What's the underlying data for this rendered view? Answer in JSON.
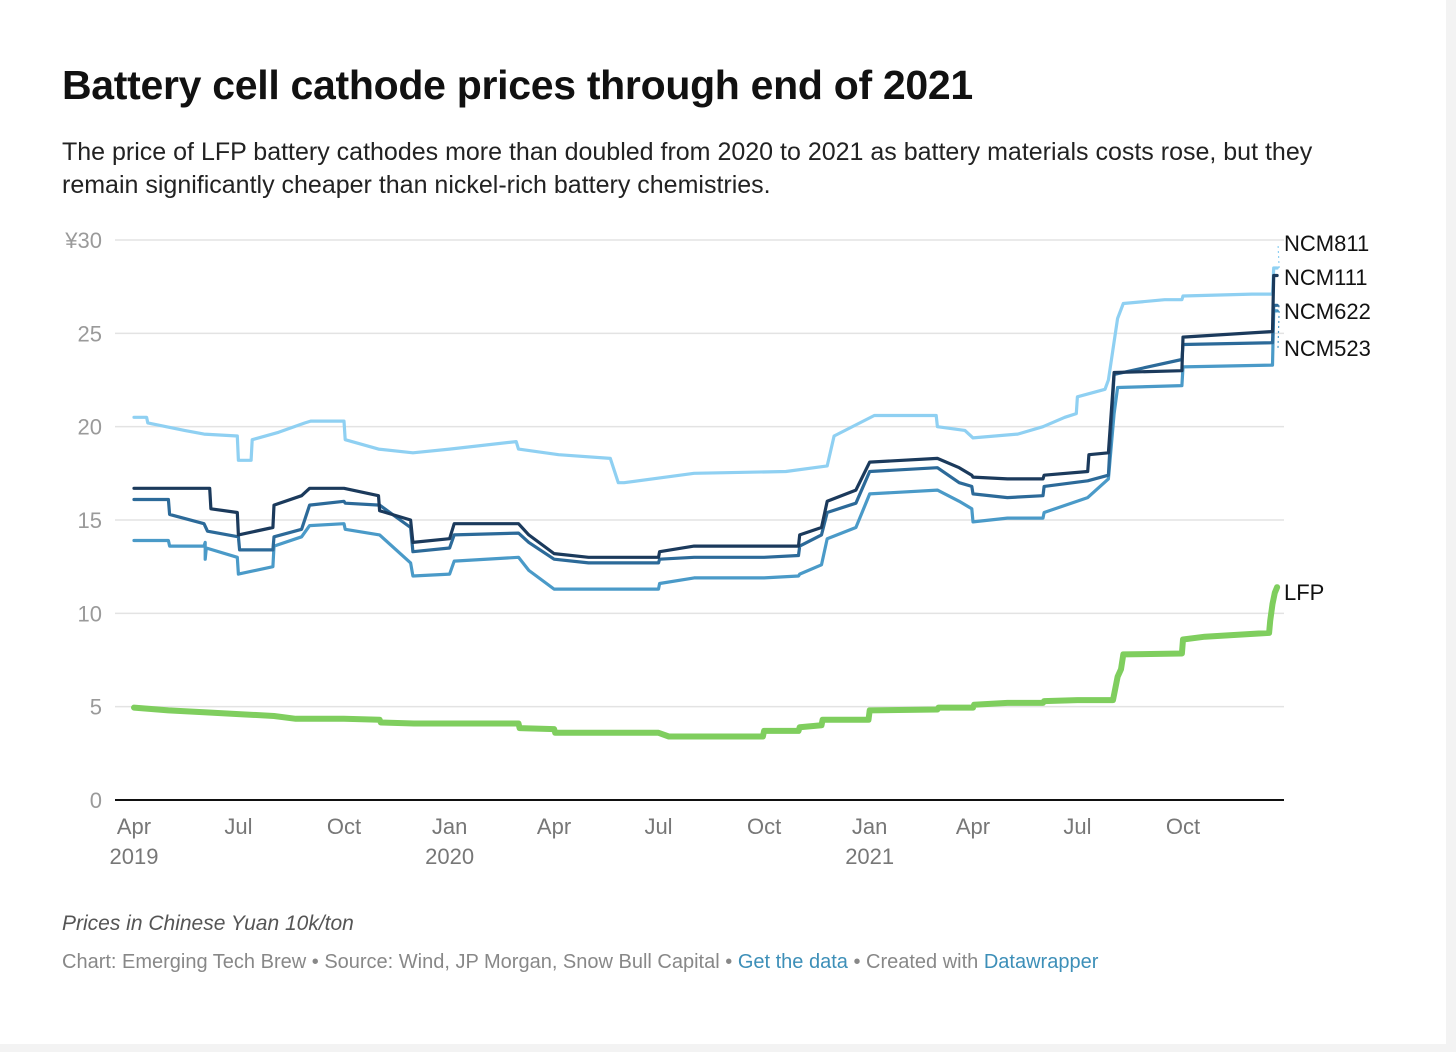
{
  "title": "Battery cell cathode prices through end of 2021",
  "subtitle": "The price of LFP battery cathodes more than doubled from 2020 to 2021 as battery materials costs rose, but they remain significantly cheaper than nickel-rich battery chemistries.",
  "notes": "Prices in Chinese Yuan 10k/ton",
  "footer": {
    "chart_by": "Chart: Emerging Tech Brew",
    "sep1": " • ",
    "source": "Source: Wind, JP Morgan, Snow Bull Capital",
    "sep2": " • ",
    "get_data": "Get the data",
    "sep3": " • ",
    "created_with": "Created with ",
    "tool": "Datawrapper"
  },
  "chart_data": {
    "type": "line",
    "title": "Battery cell cathode prices through end of 2021",
    "ylim": [
      0,
      30
    ],
    "y_ticks": [
      {
        "value": 0,
        "label": "0"
      },
      {
        "value": 5,
        "label": "5"
      },
      {
        "value": 10,
        "label": "10"
      },
      {
        "value": 15,
        "label": "15"
      },
      {
        "value": 20,
        "label": "20"
      },
      {
        "value": 25,
        "label": "25"
      },
      {
        "value": 30,
        "label": "¥30"
      }
    ],
    "x_ticks": [
      {
        "date": "2019-04-01",
        "label": "Apr",
        "year": "2019"
      },
      {
        "date": "2019-07-01",
        "label": "Jul",
        "year": ""
      },
      {
        "date": "2019-10-01",
        "label": "Oct",
        "year": ""
      },
      {
        "date": "2020-01-01",
        "label": "Jan",
        "year": "2020"
      },
      {
        "date": "2020-04-01",
        "label": "Apr",
        "year": ""
      },
      {
        "date": "2020-07-01",
        "label": "Jul",
        "year": ""
      },
      {
        "date": "2020-10-01",
        "label": "Oct",
        "year": ""
      },
      {
        "date": "2021-01-01",
        "label": "Jan",
        "year": "2021"
      },
      {
        "date": "2021-04-01",
        "label": "Apr",
        "year": ""
      },
      {
        "date": "2021-07-01",
        "label": "Jul",
        "year": ""
      },
      {
        "date": "2021-10-01",
        "label": "Oct",
        "year": ""
      }
    ],
    "grid": true,
    "legend": "direct labels at right end of lines",
    "series": [
      {
        "name": "NCM811",
        "color": "#8fd0f2",
        "points": [
          [
            "2019-04-01",
            20.5
          ],
          [
            "2019-04-12",
            20.5
          ],
          [
            "2019-04-13",
            20.2
          ],
          [
            "2019-05-15",
            19.8
          ],
          [
            "2019-06-01",
            19.6
          ],
          [
            "2019-06-30",
            19.5
          ],
          [
            "2019-07-01",
            18.2
          ],
          [
            "2019-07-12",
            18.2
          ],
          [
            "2019-07-13",
            19.3
          ],
          [
            "2019-08-05",
            19.7
          ],
          [
            "2019-08-28",
            20.2
          ],
          [
            "2019-09-02",
            20.3
          ],
          [
            "2019-10-01",
            20.3
          ],
          [
            "2019-10-02",
            19.3
          ],
          [
            "2019-10-31",
            18.8
          ],
          [
            "2019-11-30",
            18.6
          ],
          [
            "2020-01-01",
            18.8
          ],
          [
            "2020-02-28",
            19.2
          ],
          [
            "2020-03-01",
            18.8
          ],
          [
            "2020-04-05",
            18.5
          ],
          [
            "2020-05-20",
            18.3
          ],
          [
            "2020-05-27",
            17.0
          ],
          [
            "2020-06-01",
            17.0
          ],
          [
            "2020-08-01",
            17.5
          ],
          [
            "2020-10-20",
            17.6
          ],
          [
            "2020-11-25",
            17.9
          ],
          [
            "2020-12-01",
            19.5
          ],
          [
            "2021-01-05",
            20.6
          ],
          [
            "2021-02-28",
            20.6
          ],
          [
            "2021-03-01",
            20.0
          ],
          [
            "2021-03-25",
            19.8
          ],
          [
            "2021-04-01",
            19.4
          ],
          [
            "2021-05-10",
            19.6
          ],
          [
            "2021-06-01",
            20.0
          ],
          [
            "2021-06-20",
            20.5
          ],
          [
            "2021-06-30",
            20.7
          ],
          [
            "2021-07-01",
            21.6
          ],
          [
            "2021-07-25",
            22.0
          ],
          [
            "2021-07-28",
            22.5
          ],
          [
            "2021-08-05",
            25.8
          ],
          [
            "2021-08-10",
            26.6
          ],
          [
            "2021-09-15",
            26.8
          ],
          [
            "2021-09-30",
            26.8
          ],
          [
            "2021-10-01",
            27.0
          ],
          [
            "2021-11-30",
            27.1
          ],
          [
            "2021-12-18",
            27.1
          ],
          [
            "2021-12-19",
            28.5
          ],
          [
            "2021-12-22",
            28.5
          ]
        ]
      },
      {
        "name": "NCM111",
        "color": "#1b3a5c",
        "points": [
          [
            "2019-04-01",
            16.7
          ],
          [
            "2019-06-06",
            16.7
          ],
          [
            "2019-06-07",
            15.6
          ],
          [
            "2019-06-30",
            15.4
          ],
          [
            "2019-07-01",
            14.2
          ],
          [
            "2019-07-31",
            14.6
          ],
          [
            "2019-08-01",
            15.8
          ],
          [
            "2019-08-25",
            16.3
          ],
          [
            "2019-09-01",
            16.7
          ],
          [
            "2019-10-01",
            16.7
          ],
          [
            "2019-10-31",
            16.3
          ],
          [
            "2019-11-01",
            15.5
          ],
          [
            "2019-11-28",
            15.0
          ],
          [
            "2019-11-30",
            13.8
          ],
          [
            "2020-01-01",
            14.0
          ],
          [
            "2020-01-05",
            14.8
          ],
          [
            "2020-03-01",
            14.8
          ],
          [
            "2020-03-10",
            14.2
          ],
          [
            "2020-04-01",
            13.2
          ],
          [
            "2020-05-01",
            13.0
          ],
          [
            "2020-07-01",
            13.0
          ],
          [
            "2020-07-02",
            13.3
          ],
          [
            "2020-08-01",
            13.6
          ],
          [
            "2020-10-01",
            13.6
          ],
          [
            "2020-10-31",
            13.6
          ],
          [
            "2020-11-01",
            14.2
          ],
          [
            "2020-11-20",
            14.6
          ],
          [
            "2020-11-25",
            16.0
          ],
          [
            "2020-12-20",
            16.6
          ],
          [
            "2021-01-01",
            18.1
          ],
          [
            "2021-03-01",
            18.3
          ],
          [
            "2021-03-20",
            17.8
          ],
          [
            "2021-03-31",
            17.4
          ],
          [
            "2021-04-01",
            17.3
          ],
          [
            "2021-05-01",
            17.2
          ],
          [
            "2021-06-01",
            17.2
          ],
          [
            "2021-06-02",
            17.4
          ],
          [
            "2021-07-10",
            17.6
          ],
          [
            "2021-07-11",
            18.5
          ],
          [
            "2021-07-28",
            18.6
          ],
          [
            "2021-08-02",
            22.9
          ],
          [
            "2021-09-30",
            23.0
          ],
          [
            "2021-10-01",
            24.8
          ],
          [
            "2021-12-18",
            25.1
          ],
          [
            "2021-12-19",
            28.1
          ],
          [
            "2021-12-22",
            28.1
          ]
        ]
      },
      {
        "name": "NCM622",
        "color": "#2c6a99",
        "points": [
          [
            "2019-04-01",
            16.1
          ],
          [
            "2019-05-01",
            16.1
          ],
          [
            "2019-05-02",
            15.3
          ],
          [
            "2019-06-01",
            14.8
          ],
          [
            "2019-06-04",
            14.4
          ],
          [
            "2019-07-01",
            14.1
          ],
          [
            "2019-07-02",
            13.4
          ],
          [
            "2019-07-31",
            13.4
          ],
          [
            "2019-08-01",
            14.1
          ],
          [
            "2019-08-25",
            14.5
          ],
          [
            "2019-09-01",
            15.8
          ],
          [
            "2019-10-01",
            16.0
          ],
          [
            "2019-10-02",
            15.9
          ],
          [
            "2019-11-01",
            15.8
          ],
          [
            "2019-11-28",
            14.6
          ],
          [
            "2019-11-30",
            13.3
          ],
          [
            "2020-01-01",
            13.5
          ],
          [
            "2020-01-05",
            14.2
          ],
          [
            "2020-03-01",
            14.3
          ],
          [
            "2020-03-10",
            13.8
          ],
          [
            "2020-04-01",
            12.9
          ],
          [
            "2020-05-01",
            12.7
          ],
          [
            "2020-07-01",
            12.7
          ],
          [
            "2020-07-02",
            12.9
          ],
          [
            "2020-08-01",
            13.0
          ],
          [
            "2020-10-01",
            13.0
          ],
          [
            "2020-10-31",
            13.1
          ],
          [
            "2020-11-01",
            13.6
          ],
          [
            "2020-11-20",
            14.2
          ],
          [
            "2020-11-25",
            15.4
          ],
          [
            "2020-12-20",
            15.9
          ],
          [
            "2021-01-01",
            17.6
          ],
          [
            "2021-03-01",
            17.8
          ],
          [
            "2021-03-20",
            17.0
          ],
          [
            "2021-03-31",
            16.8
          ],
          [
            "2021-04-01",
            16.4
          ],
          [
            "2021-05-01",
            16.2
          ],
          [
            "2021-06-01",
            16.3
          ],
          [
            "2021-06-02",
            16.8
          ],
          [
            "2021-07-10",
            17.1
          ],
          [
            "2021-07-28",
            17.4
          ],
          [
            "2021-08-02",
            22.8
          ],
          [
            "2021-09-30",
            23.6
          ],
          [
            "2021-10-01",
            24.4
          ],
          [
            "2021-12-18",
            24.5
          ],
          [
            "2021-12-19",
            26.5
          ],
          [
            "2021-12-22",
            26.5
          ]
        ]
      },
      {
        "name": "NCM523",
        "color": "#4a9ac8",
        "points": [
          [
            "2019-04-01",
            13.9
          ],
          [
            "2019-05-01",
            13.9
          ],
          [
            "2019-05-02",
            13.6
          ],
          [
            "2019-06-01",
            13.6
          ],
          [
            "2019-06-02",
            13.8
          ],
          [
            "2019-06-02",
            12.9
          ],
          [
            "2019-06-03",
            13.5
          ],
          [
            "2019-06-30",
            13.0
          ],
          [
            "2019-07-01",
            12.1
          ],
          [
            "2019-07-31",
            12.5
          ],
          [
            "2019-08-01",
            13.6
          ],
          [
            "2019-08-25",
            14.1
          ],
          [
            "2019-09-01",
            14.7
          ],
          [
            "2019-10-01",
            14.8
          ],
          [
            "2019-10-02",
            14.5
          ],
          [
            "2019-11-01",
            14.2
          ],
          [
            "2019-11-28",
            12.7
          ],
          [
            "2019-11-30",
            12.0
          ],
          [
            "2020-01-01",
            12.1
          ],
          [
            "2020-01-05",
            12.8
          ],
          [
            "2020-03-01",
            13.0
          ],
          [
            "2020-03-10",
            12.3
          ],
          [
            "2020-04-01",
            11.3
          ],
          [
            "2020-05-01",
            11.3
          ],
          [
            "2020-07-01",
            11.3
          ],
          [
            "2020-07-02",
            11.6
          ],
          [
            "2020-08-01",
            11.9
          ],
          [
            "2020-10-01",
            11.9
          ],
          [
            "2020-10-31",
            12.0
          ],
          [
            "2020-11-01",
            12.1
          ],
          [
            "2020-11-20",
            12.6
          ],
          [
            "2020-11-25",
            14.0
          ],
          [
            "2020-12-20",
            14.6
          ],
          [
            "2021-01-01",
            16.4
          ],
          [
            "2021-03-01",
            16.6
          ],
          [
            "2021-03-20",
            16.0
          ],
          [
            "2021-03-31",
            15.6
          ],
          [
            "2021-04-01",
            14.9
          ],
          [
            "2021-05-01",
            15.1
          ],
          [
            "2021-06-01",
            15.1
          ],
          [
            "2021-06-02",
            15.4
          ],
          [
            "2021-07-10",
            16.2
          ],
          [
            "2021-07-28",
            17.2
          ],
          [
            "2021-08-02",
            20.7
          ],
          [
            "2021-08-05",
            22.1
          ],
          [
            "2021-09-30",
            22.2
          ],
          [
            "2021-10-01",
            23.2
          ],
          [
            "2021-12-18",
            23.3
          ],
          [
            "2021-12-19",
            26.2
          ],
          [
            "2021-12-22",
            26.2
          ]
        ]
      },
      {
        "name": "LFP",
        "color": "#7fce5e",
        "points": [
          [
            "2019-04-01",
            4.95
          ],
          [
            "2019-05-01",
            4.8
          ],
          [
            "2019-06-01",
            4.7
          ],
          [
            "2019-07-01",
            4.6
          ],
          [
            "2019-08-01",
            4.5
          ],
          [
            "2019-08-20",
            4.35
          ],
          [
            "2019-10-01",
            4.35
          ],
          [
            "2019-11-01",
            4.3
          ],
          [
            "2019-11-02",
            4.15
          ],
          [
            "2019-12-01",
            4.1
          ],
          [
            "2020-01-01",
            4.1
          ],
          [
            "2020-03-01",
            4.1
          ],
          [
            "2020-03-02",
            3.85
          ],
          [
            "2020-04-01",
            3.8
          ],
          [
            "2020-04-02",
            3.6
          ],
          [
            "2020-07-01",
            3.6
          ],
          [
            "2020-07-10",
            3.4
          ],
          [
            "2020-09-30",
            3.4
          ],
          [
            "2020-10-01",
            3.7
          ],
          [
            "2020-10-31",
            3.7
          ],
          [
            "2020-11-01",
            3.9
          ],
          [
            "2020-11-20",
            4.0
          ],
          [
            "2020-11-21",
            4.3
          ],
          [
            "2020-12-31",
            4.3
          ],
          [
            "2021-01-01",
            4.8
          ],
          [
            "2021-03-01",
            4.85
          ],
          [
            "2021-03-02",
            4.95
          ],
          [
            "2021-04-01",
            4.95
          ],
          [
            "2021-04-02",
            5.1
          ],
          [
            "2021-05-01",
            5.2
          ],
          [
            "2021-06-01",
            5.2
          ],
          [
            "2021-06-02",
            5.3
          ],
          [
            "2021-07-01",
            5.35
          ],
          [
            "2021-08-01",
            5.35
          ],
          [
            "2021-08-05",
            6.6
          ],
          [
            "2021-08-08",
            7.0
          ],
          [
            "2021-08-10",
            7.8
          ],
          [
            "2021-09-30",
            7.85
          ],
          [
            "2021-10-01",
            8.6
          ],
          [
            "2021-10-20",
            8.75
          ],
          [
            "2021-12-15",
            8.95
          ],
          [
            "2021-12-16",
            9.6
          ],
          [
            "2021-12-18",
            10.5
          ],
          [
            "2021-12-20",
            11.1
          ],
          [
            "2021-12-22",
            11.4
          ]
        ]
      }
    ]
  }
}
